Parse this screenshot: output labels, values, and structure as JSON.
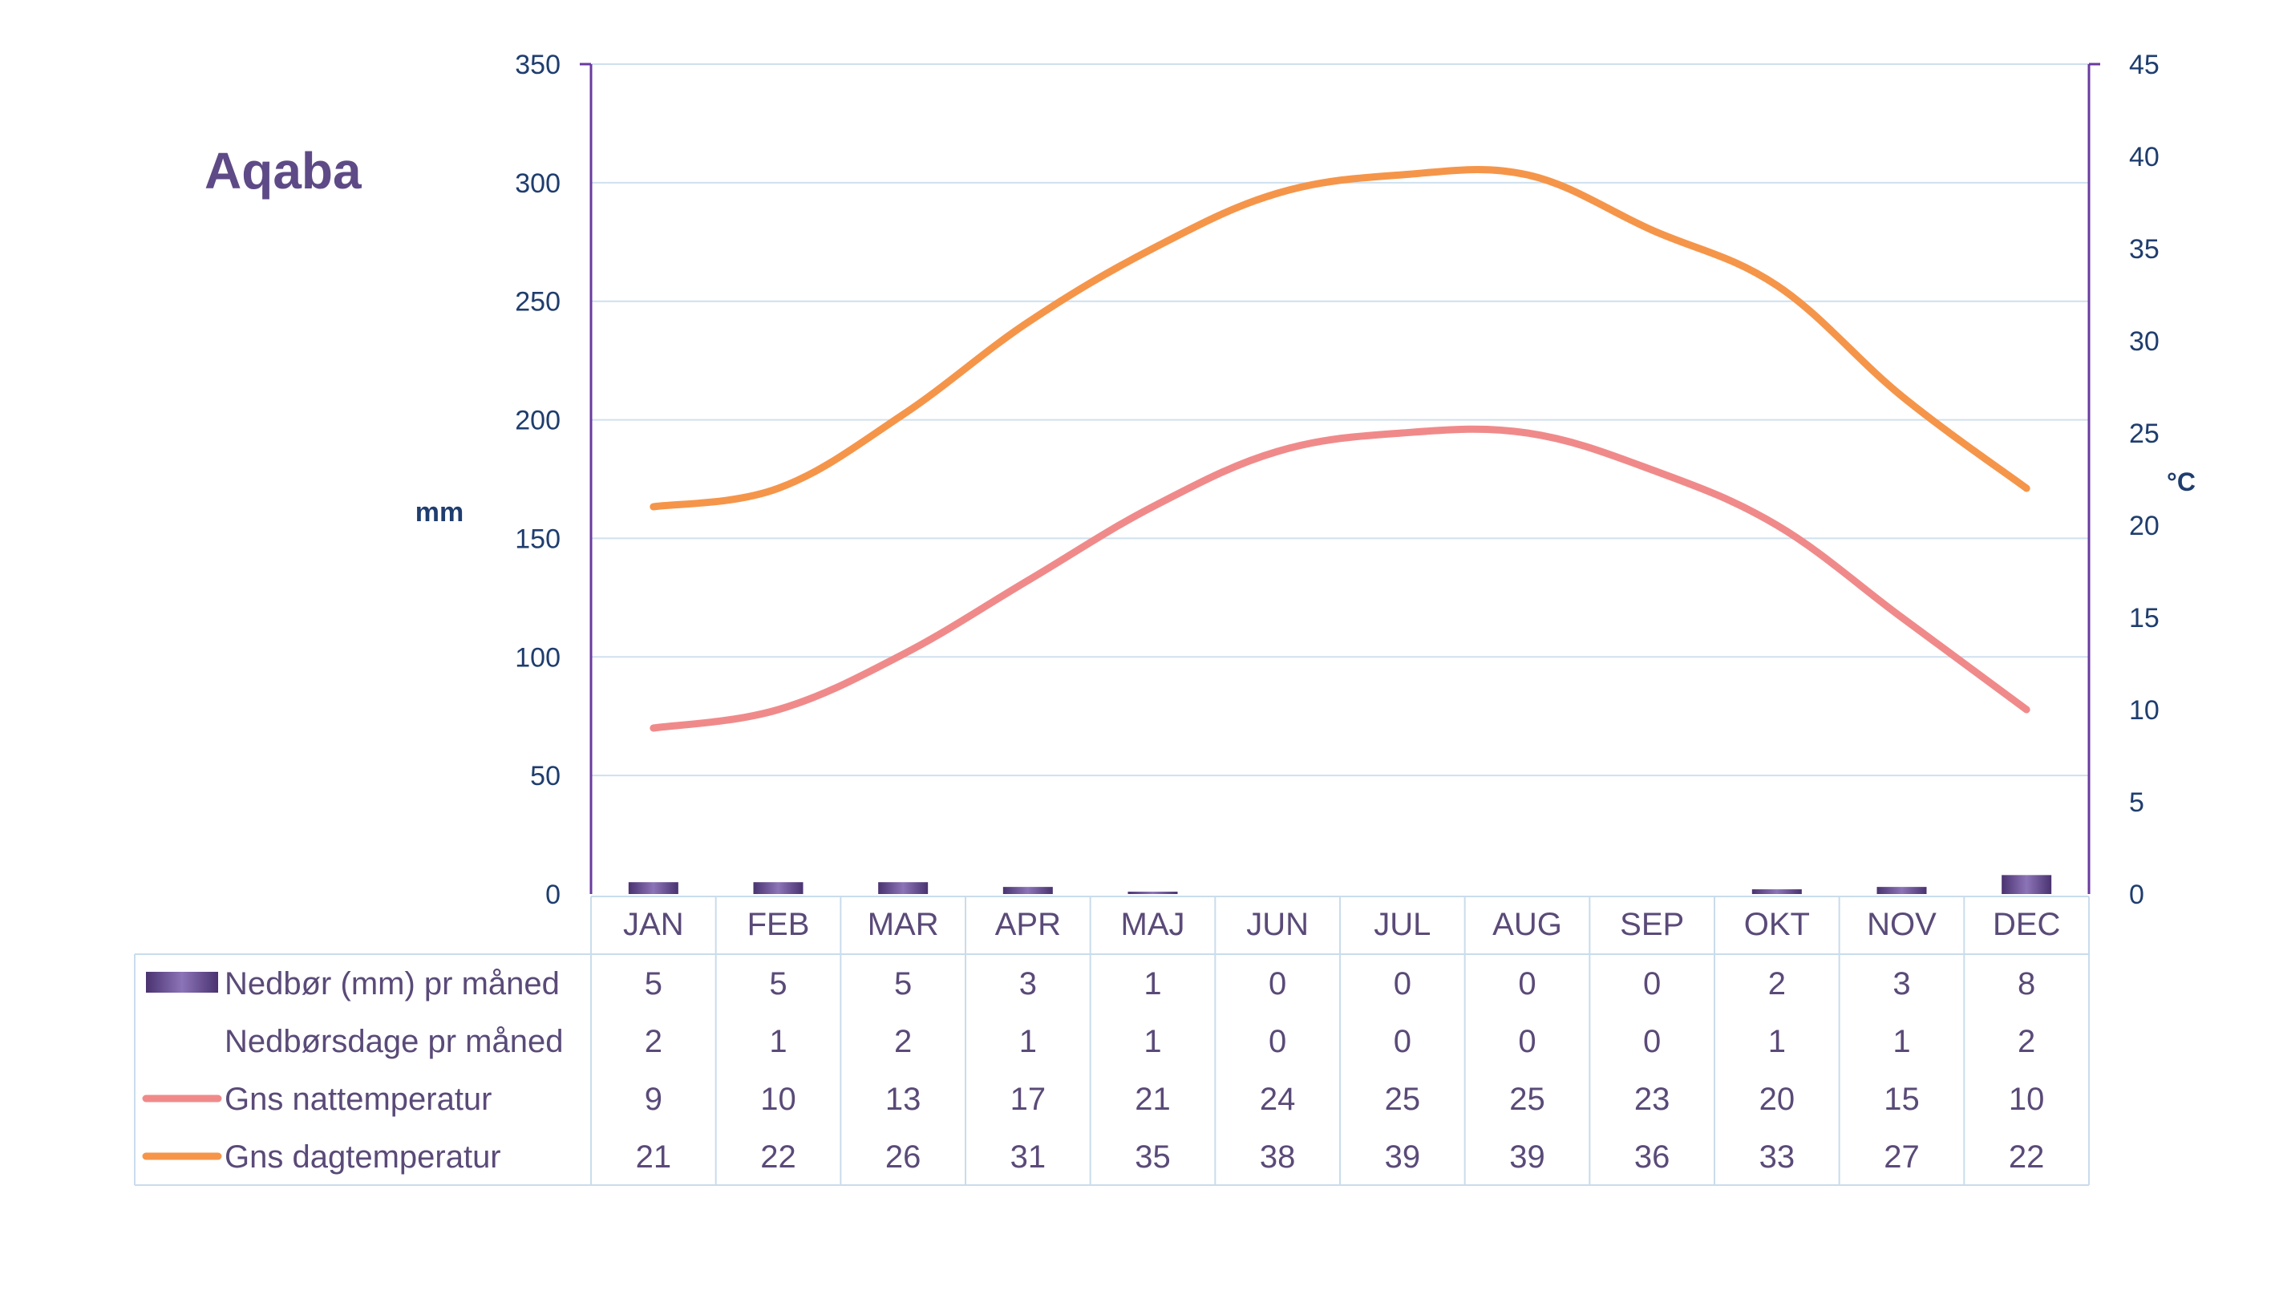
{
  "chart_data": {
    "type": "bar",
    "title": "Aqaba",
    "ylabel_left": "mm",
    "ylabel_right": "°C",
    "ylim_left": [
      0,
      350
    ],
    "ylim_right": [
      0,
      45
    ],
    "yticks_left": [
      "0",
      "50",
      "100",
      "150",
      "200",
      "250",
      "300",
      "350"
    ],
    "yticks_right": [
      "0",
      "5",
      "10",
      "15",
      "20",
      "25",
      "30",
      "35",
      "40",
      "45"
    ],
    "categories": [
      "JAN",
      "FEB",
      "MAR",
      "APR",
      "MAJ",
      "JUN",
      "JUL",
      "AUG",
      "SEP",
      "OKT",
      "NOV",
      "DEC"
    ],
    "grid": true,
    "series": [
      {
        "name": "Nedbør (mm) pr måned",
        "type": "bar",
        "axis": "left",
        "values": [
          5,
          5,
          5,
          3,
          1,
          0,
          0,
          0,
          0,
          2,
          3,
          8
        ],
        "color": "#5b3f80"
      },
      {
        "name": "Nedbørsdage pr måned",
        "type": "table-only",
        "values": [
          2,
          1,
          2,
          1,
          1,
          0,
          0,
          0,
          0,
          1,
          1,
          2
        ]
      },
      {
        "name": "Gns nattemperatur",
        "type": "line",
        "axis": "right",
        "values": [
          9,
          10,
          13,
          17,
          21,
          24,
          25,
          25,
          23,
          20,
          15,
          10
        ],
        "color": "#f08a8a"
      },
      {
        "name": "Gns dagtemperatur",
        "type": "line",
        "axis": "right",
        "values": [
          21,
          22,
          26,
          31,
          35,
          38,
          39,
          39,
          36,
          33,
          27,
          22
        ],
        "color": "#f5954a"
      }
    ]
  },
  "colors": {
    "title": "#5e4a86",
    "axis_text": "#1f3d6e",
    "axis_line": "#6a3aa0",
    "grid": "#cfe0ee",
    "table_text": "#5a4a78",
    "table_border": "#c9dcec"
  }
}
